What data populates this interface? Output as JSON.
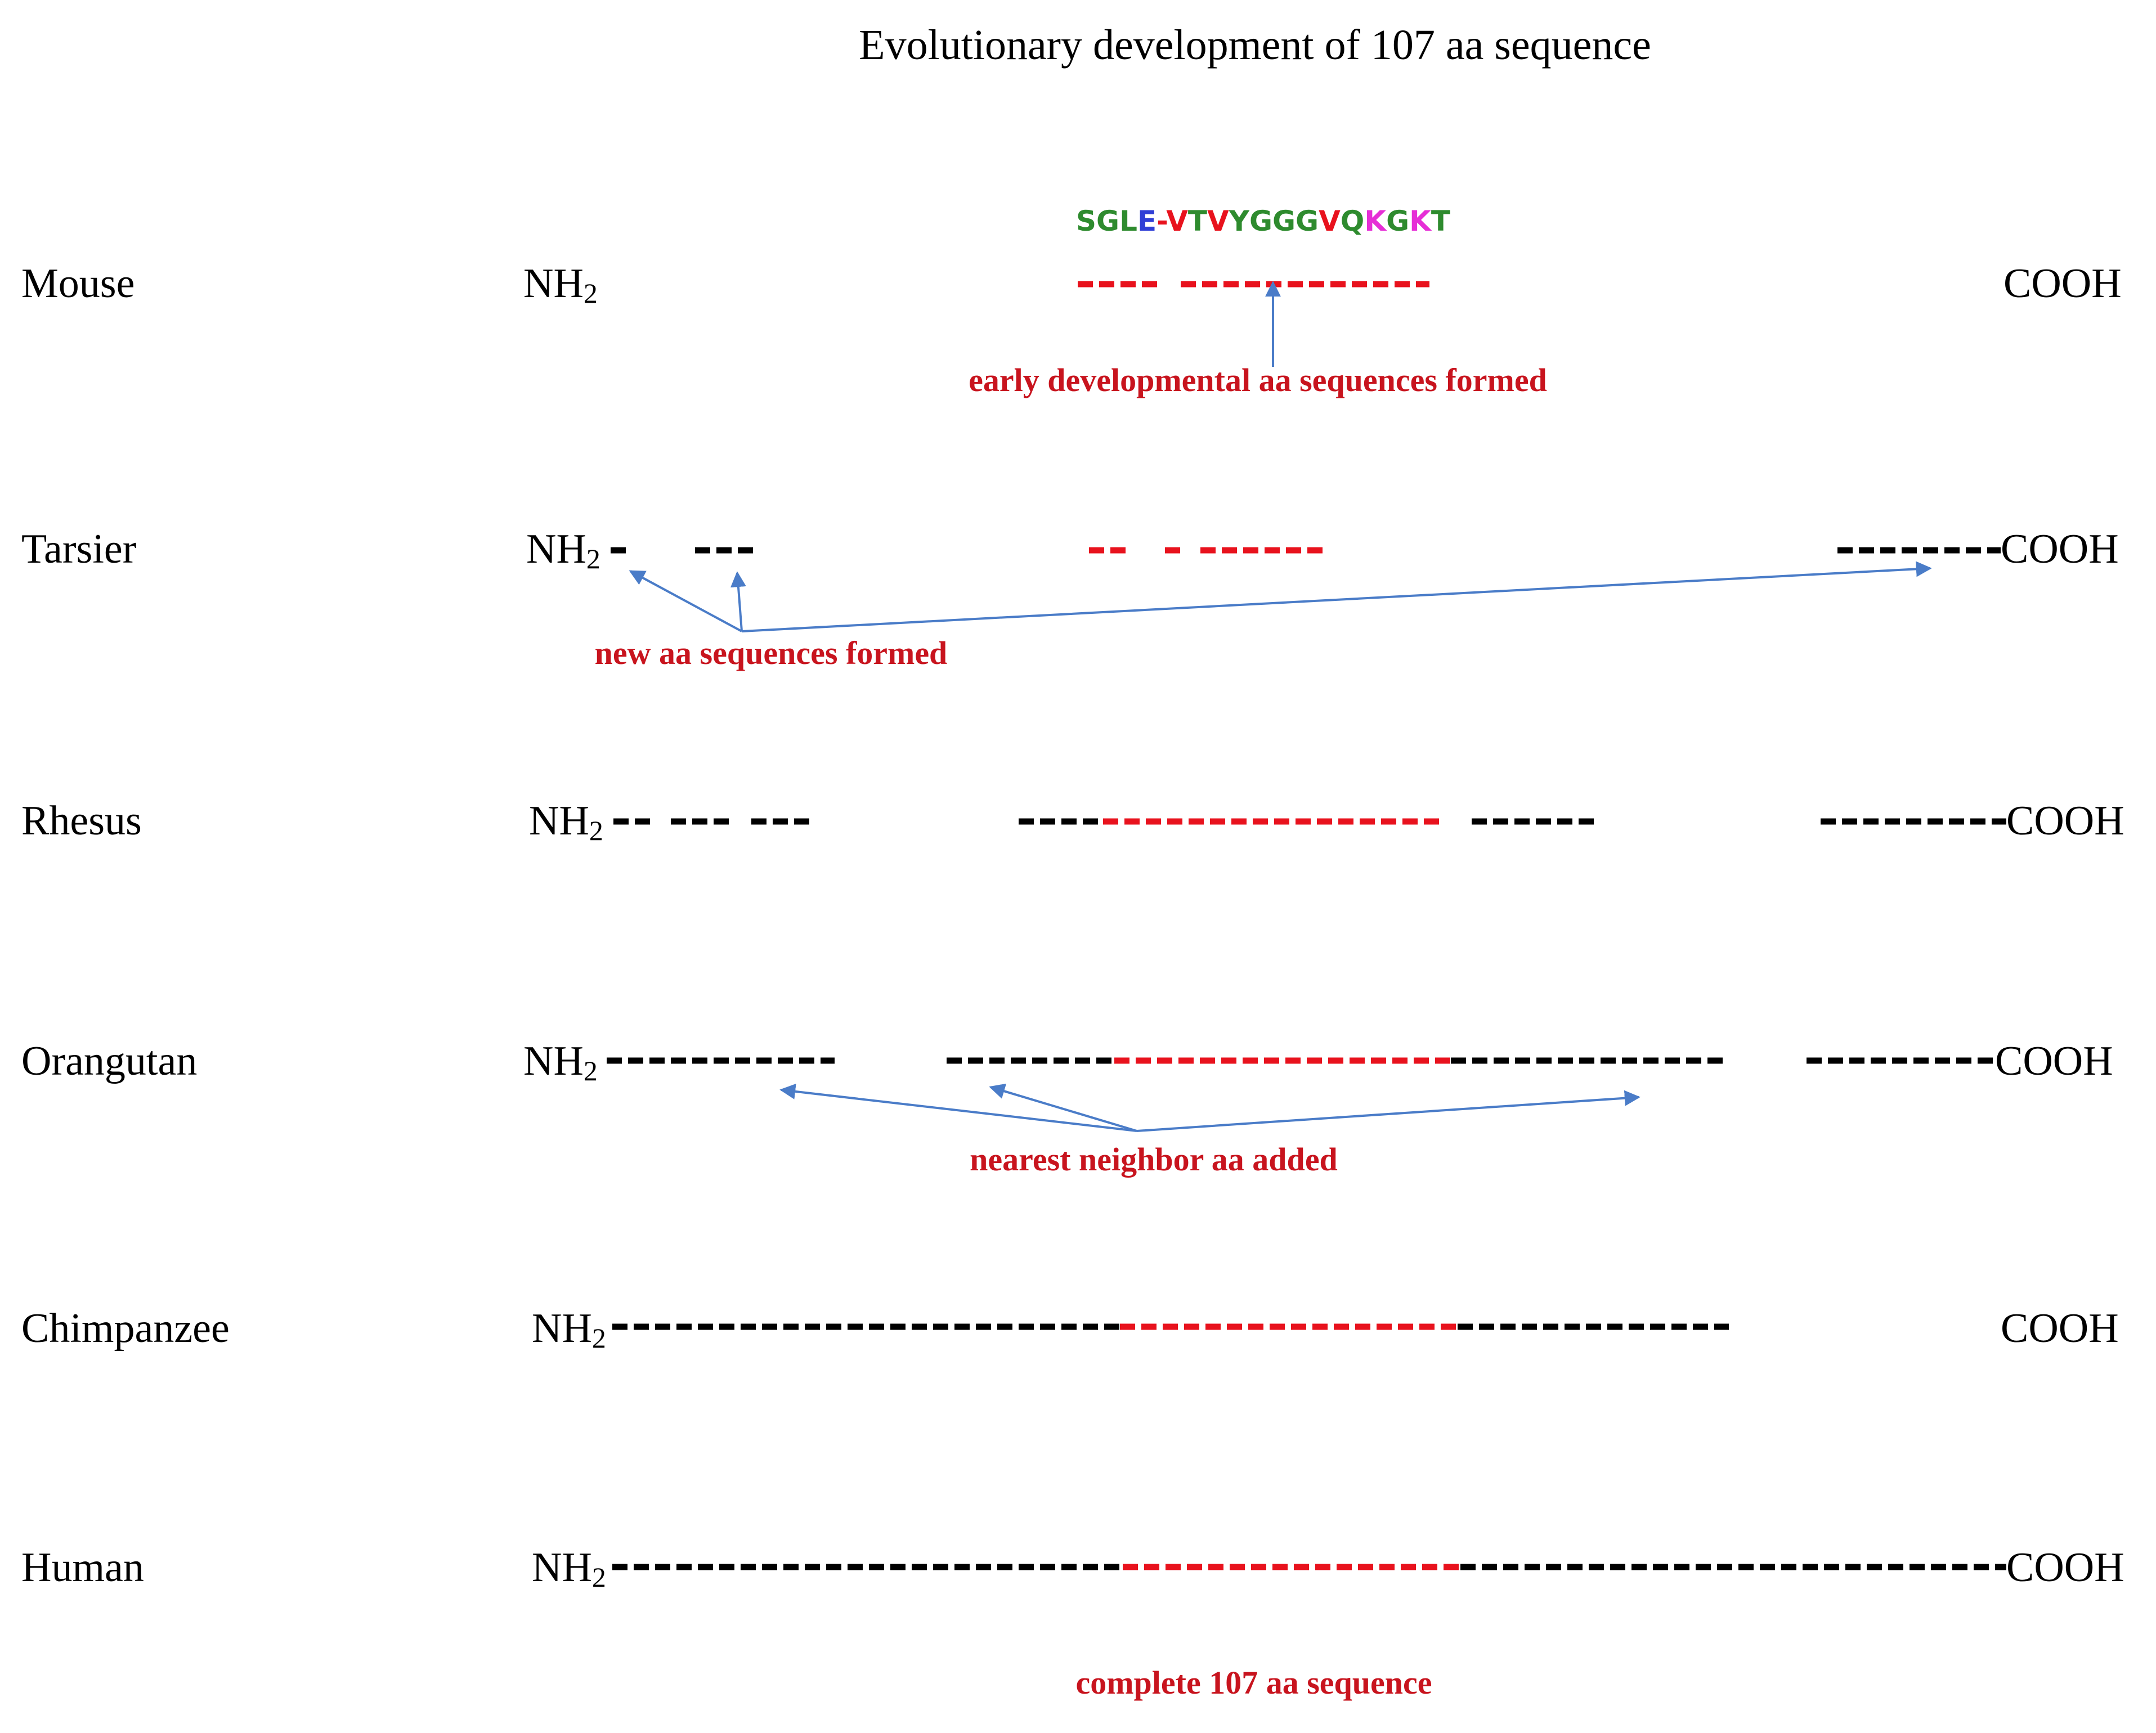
{
  "title": "Evolutionary development of 107 aa sequence",
  "nh2": "NH",
  "nh2_sub": "2",
  "cooh": "COOH",
  "colors": {
    "red": "#e8121d",
    "black": "#000000",
    "blue": "#4a7cc8",
    "annotation": "#c8141e"
  },
  "species": [
    {
      "name": "Mouse"
    },
    {
      "name": "Tarsier"
    },
    {
      "name": "Rhesus"
    },
    {
      "name": "Orangutan"
    },
    {
      "name": "Chimpanzee"
    },
    {
      "name": "Human"
    }
  ],
  "sequence_label": [
    {
      "t": "S",
      "c": "#2e8b2e"
    },
    {
      "t": "G",
      "c": "#2e8b2e"
    },
    {
      "t": "L",
      "c": "#2e8b2e"
    },
    {
      "t": "E",
      "c": "#2f3fd6"
    },
    {
      "t": "-",
      "c": "#e8121d"
    },
    {
      "t": "V",
      "c": "#e8121d"
    },
    {
      "t": "T",
      "c": "#2e8b2e"
    },
    {
      "t": "V",
      "c": "#e8121d"
    },
    {
      "t": "Y",
      "c": "#2e8b2e"
    },
    {
      "t": "G",
      "c": "#2e8b2e"
    },
    {
      "t": "G",
      "c": "#2e8b2e"
    },
    {
      "t": "G",
      "c": "#2e8b2e"
    },
    {
      "t": "V",
      "c": "#e8121d"
    },
    {
      "t": "Q",
      "c": "#2e8b2e"
    },
    {
      "t": "K",
      "c": "#e62ed6"
    },
    {
      "t": "G",
      "c": "#2e8b2e"
    },
    {
      "t": "K",
      "c": "#e62ed6"
    },
    {
      "t": "T",
      "c": "#2e8b2e"
    }
  ],
  "annotations": {
    "early": "early developmental aa sequences formed",
    "new": "new aa sequences formed",
    "neighbor": "nearest neighbor aa added",
    "complete": "complete 107 aa sequence"
  }
}
